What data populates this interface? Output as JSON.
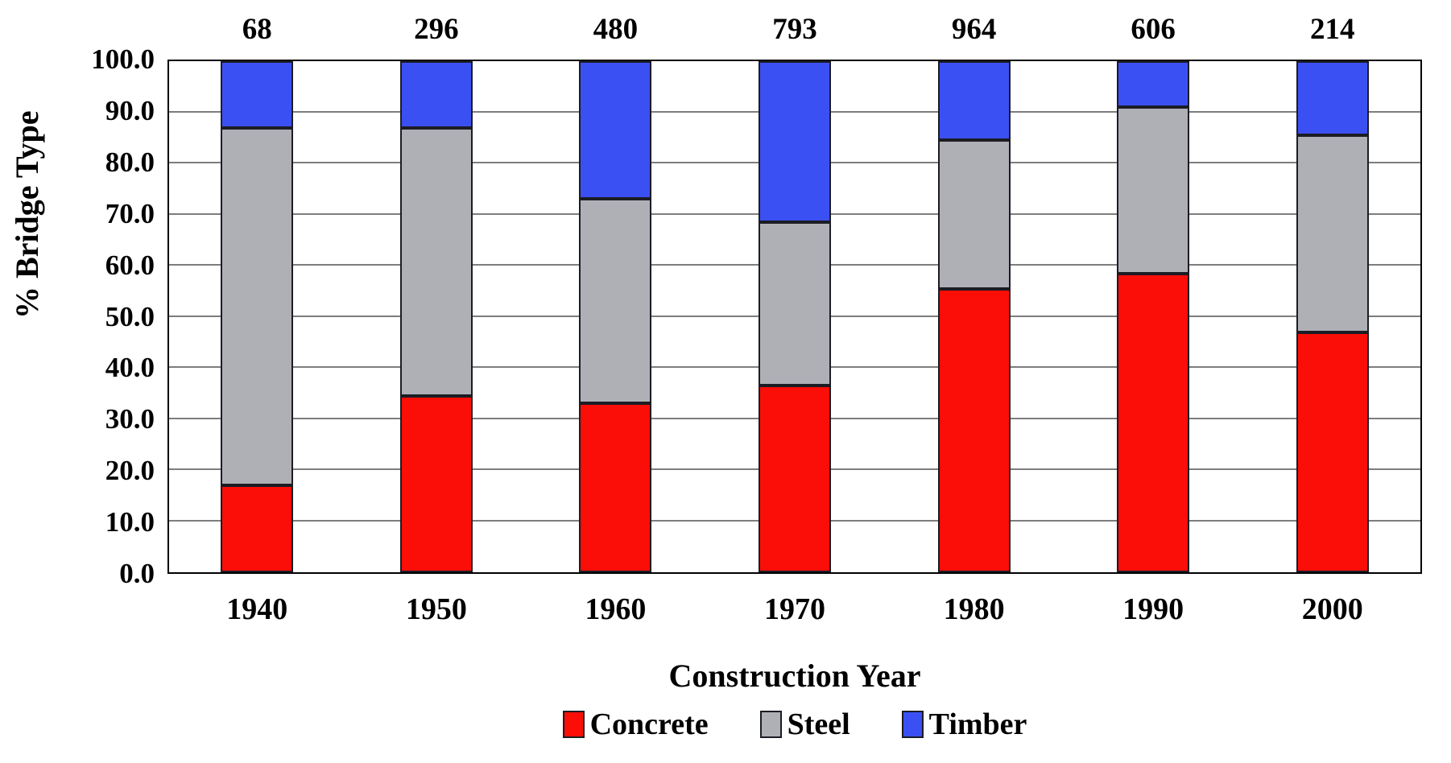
{
  "chart_data": {
    "type": "bar",
    "stacked": true,
    "title": "",
    "xlabel": "Construction Year",
    "ylabel": "% Bridge Type",
    "categories": [
      "1940",
      "1950",
      "1960",
      "1970",
      "1980",
      "1990",
      "2000"
    ],
    "bar_total_labels": [
      "68",
      "296",
      "480",
      "793",
      "964",
      "606",
      "214"
    ],
    "series": [
      {
        "name": "Concrete",
        "color": "#fb0e07",
        "values": [
          17.0,
          34.5,
          33.0,
          36.5,
          55.5,
          58.5,
          47.0
        ]
      },
      {
        "name": "Steel",
        "color": "#aeb0b6",
        "values": [
          70.0,
          52.5,
          40.0,
          32.0,
          29.0,
          32.5,
          38.5
        ]
      },
      {
        "name": "Timber",
        "color": "#3b50f2",
        "values": [
          13.0,
          13.0,
          27.0,
          31.5,
          15.5,
          9.0,
          14.5
        ]
      }
    ],
    "ylim": [
      0,
      100
    ],
    "ytick_step": 10,
    "ytick_labels": [
      "100.0",
      "90.0",
      "80.0",
      "70.0",
      "60.0",
      "50.0",
      "40.0",
      "30.0",
      "20.0",
      "10.0",
      "0.0"
    ],
    "grid": "horizontal",
    "legend_position": "bottom"
  },
  "colors": {
    "concrete": "#fb0e07",
    "steel": "#aeb0b6",
    "timber": "#3b50f2",
    "gridline": "#7d7d7d",
    "plot_border": "#000000",
    "segment_border": "#1c1c24",
    "background": "#ffffff",
    "text": "#000000"
  }
}
